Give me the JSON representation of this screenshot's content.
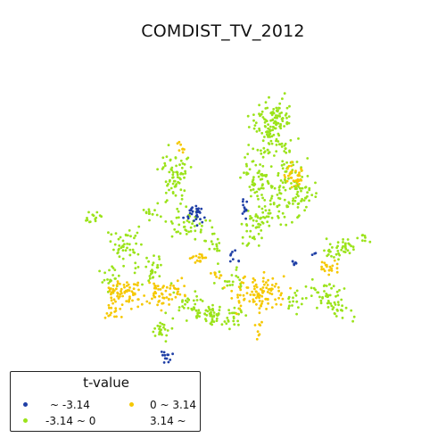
{
  "title": "COMDIST_TV_2012",
  "legend": {
    "title": "t-value",
    "items": [
      {
        "label": "~ -3.14",
        "color": "#1f3fa6"
      },
      {
        "label": "-3.14 ~ 0",
        "color": "#9be31a"
      },
      {
        "label": "0 ~ 3.14",
        "color": "#f5c800"
      },
      {
        "label": "3.14 ~",
        "color": "#d23a1a"
      }
    ]
  },
  "chart_data": {
    "type": "scatter",
    "title": "COMDIST_TV_2012",
    "legend_title": "t-value",
    "legend_placement": "bottom-left",
    "axes": "off",
    "grid": false,
    "classes": [
      {
        "name": "~ -3.14",
        "color": "#1f3fa6"
      },
      {
        "name": "-3.14 ~ 0",
        "color": "#9be31a"
      },
      {
        "name": "0 ~ 3.14",
        "color": "#f5c800"
      },
      {
        "name": "3.14 ~",
        "color": "#d23a1a"
      }
    ]
  }
}
